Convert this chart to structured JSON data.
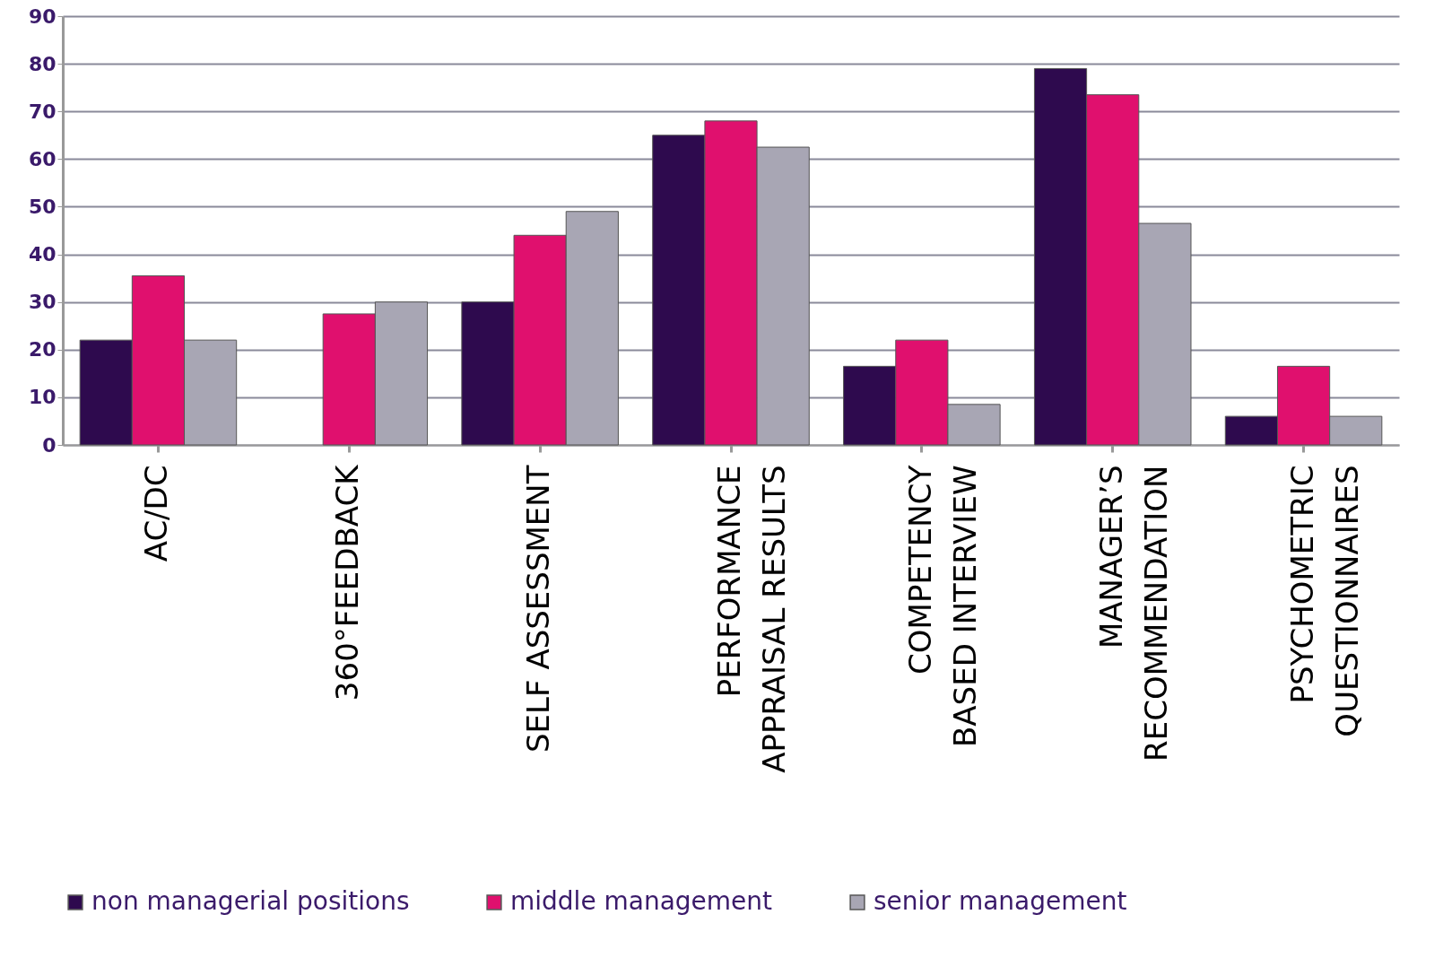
{
  "chart_data": {
    "type": "bar",
    "categories": [
      "AC/DC",
      "360°FEEDBACK",
      "SELF ASSESSMENT",
      "PERFORMANCE APPRAISAL RESULTS",
      "COMPETENCY BASED INTERVIEW",
      "MANAGER’S RECOMMENDATION",
      "PSYCHOMETRIC QUESTIONNAIRES"
    ],
    "series": [
      {
        "name": "non managerial positions",
        "color": "#2e0a4e",
        "values": [
          22,
          null,
          30,
          65,
          16.5,
          79,
          6
        ]
      },
      {
        "name": "middle management",
        "color": "#e0106e",
        "values": [
          35.5,
          27.5,
          44,
          68,
          22,
          73.5,
          16.5
        ]
      },
      {
        "name": "senior management",
        "color": "#a8a6b4",
        "values": [
          22,
          30,
          49,
          62.5,
          8.5,
          46.5,
          6
        ]
      }
    ],
    "ylim": [
      0,
      90
    ],
    "yticks": [
      0,
      10,
      20,
      30,
      40,
      50,
      60,
      70,
      80,
      90
    ],
    "grid": "y",
    "legend": "bottom"
  }
}
